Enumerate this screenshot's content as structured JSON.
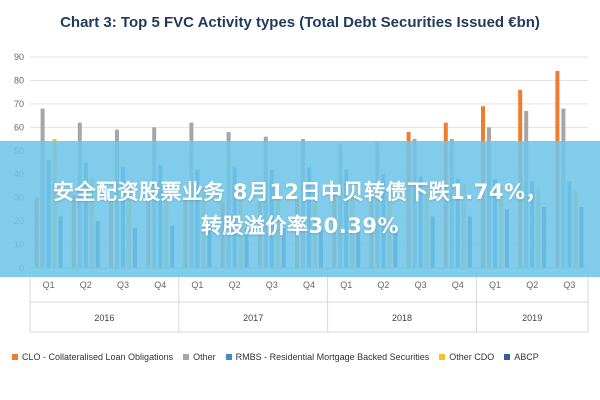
{
  "chart_data": {
    "type": "bar",
    "title": "Chart 3: Top 5 FVC Activity types (Total Debt Securities Issued €bn)",
    "ylim": [
      0,
      90
    ],
    "yticks": [
      0,
      10,
      20,
      30,
      40,
      50,
      60,
      70,
      80,
      90
    ],
    "grid": true,
    "legend_position": "bottom",
    "categories": [
      "Q1",
      "Q2",
      "Q3",
      "Q4",
      "Q1",
      "Q2",
      "Q3",
      "Q4",
      "Q1",
      "Q2",
      "Q3",
      "Q4",
      "Q1",
      "Q2",
      "Q3"
    ],
    "years": [
      {
        "label": "2016",
        "count": 4
      },
      {
        "label": "2017",
        "count": 4
      },
      {
        "label": "2018",
        "count": 4
      },
      {
        "label": "2019",
        "count": 3
      }
    ],
    "series": [
      {
        "name": "CLO - Collateralised Loan Obligations",
        "color": "#f07d2e",
        "values": [
          30,
          31,
          30,
          29,
          29,
          28,
          28,
          30,
          33,
          35,
          58,
          62,
          69,
          76,
          84
        ]
      },
      {
        "name": "Other",
        "color": "#a6a6a6",
        "values": [
          68,
          62,
          59,
          60,
          62,
          58,
          56,
          55,
          53,
          54,
          55,
          55,
          60,
          67,
          68
        ]
      },
      {
        "name": "RMBS - Residential Mortgage Backed Securities",
        "color": "#3b8fd0",
        "values": [
          46,
          45,
          43,
          44,
          42,
          43,
          42,
          43,
          42,
          40,
          39,
          38,
          38,
          37,
          37
        ]
      },
      {
        "name": "Other CDO",
        "color": "#f2c12e",
        "values": [
          55,
          38,
          37,
          36,
          34,
          34,
          33,
          34,
          34,
          34,
          35,
          36,
          35,
          34,
          33
        ]
      },
      {
        "name": "ABCP",
        "color": "#2f5fa5",
        "values": [
          22,
          20,
          17,
          18,
          18,
          17,
          17,
          17,
          17,
          17,
          22,
          22,
          25,
          26,
          26
        ]
      }
    ]
  },
  "overlay": {
    "line1": "安全配资股票业务 8月12日中贝转债下跌1.74%，",
    "line2": "转股溢价率30.39%"
  }
}
